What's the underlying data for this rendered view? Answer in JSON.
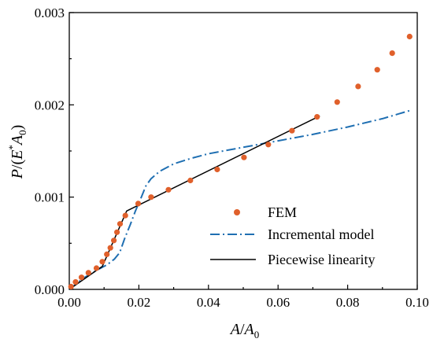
{
  "chart_data": {
    "type": "line",
    "xlabel": {
      "main": "A",
      "sep": "/",
      "main2": "A",
      "sub2": "0"
    },
    "ylabel": {
      "pre": "P",
      "sep": "/(",
      "main": "E",
      "sup": "*",
      "main2": "A",
      "sub2": "0",
      "post": ")"
    },
    "xlim": [
      0,
      0.1
    ],
    "ylim": [
      0,
      0.003
    ],
    "x_ticks": [
      "0.00",
      "0.02",
      "0.04",
      "0.06",
      "0.08",
      "0.10"
    ],
    "y_ticks": [
      "0.000",
      "0.001",
      "0.002",
      "0.003"
    ],
    "grid": false,
    "legend_position": "bottom-right",
    "series": [
      {
        "name": "FEM",
        "kind": "scatter",
        "color": "#e0602b",
        "points": [
          [
            0.0005,
            3e-05
          ],
          [
            0.0018,
            8e-05
          ],
          [
            0.0035,
            0.00013
          ],
          [
            0.0055,
            0.00018
          ],
          [
            0.0078,
            0.00023
          ],
          [
            0.0095,
            0.0003
          ],
          [
            0.0108,
            0.00038
          ],
          [
            0.0118,
            0.00045
          ],
          [
            0.0128,
            0.00053
          ],
          [
            0.0137,
            0.00062
          ],
          [
            0.0146,
            0.00071
          ],
          [
            0.0161,
            0.0008
          ],
          [
            0.0198,
            0.00093
          ],
          [
            0.0235,
            0.001
          ],
          [
            0.0285,
            0.00108
          ],
          [
            0.0348,
            0.00118
          ],
          [
            0.0425,
            0.0013
          ],
          [
            0.0502,
            0.00143
          ],
          [
            0.0572,
            0.00157
          ],
          [
            0.064,
            0.00172
          ],
          [
            0.0712,
            0.00187
          ],
          [
            0.077,
            0.00203
          ],
          [
            0.083,
            0.0022
          ],
          [
            0.0885,
            0.00238
          ],
          [
            0.0928,
            0.00256
          ],
          [
            0.0978,
            0.00274
          ]
        ]
      },
      {
        "name": "Incremental model",
        "kind": "line",
        "style": "dashdot",
        "color": "#1f6fb2",
        "points": [
          [
            0.0,
            0.0
          ],
          [
            0.004,
            0.00012
          ],
          [
            0.008,
            0.00021
          ],
          [
            0.011,
            0.00027
          ],
          [
            0.013,
            0.00033
          ],
          [
            0.0145,
            0.0004
          ],
          [
            0.016,
            0.00056
          ],
          [
            0.0175,
            0.0007
          ],
          [
            0.019,
            0.00085
          ],
          [
            0.0205,
            0.00098
          ],
          [
            0.022,
            0.00112
          ],
          [
            0.0235,
            0.0012
          ],
          [
            0.026,
            0.00128
          ],
          [
            0.03,
            0.00136
          ],
          [
            0.035,
            0.00142
          ],
          [
            0.04,
            0.00147
          ],
          [
            0.05,
            0.00154
          ],
          [
            0.06,
            0.00161
          ],
          [
            0.07,
            0.00168
          ],
          [
            0.08,
            0.00176
          ],
          [
            0.09,
            0.00185
          ],
          [
            0.098,
            0.00194
          ]
        ]
      },
      {
        "name": "Piecewise linearity",
        "kind": "line",
        "style": "solid",
        "color": "#000000",
        "points": [
          [
            0.0,
            0.0
          ],
          [
            0.0095,
            0.00025
          ],
          [
            0.0165,
            0.00085
          ],
          [
            0.072,
            0.00188
          ]
        ]
      }
    ]
  }
}
